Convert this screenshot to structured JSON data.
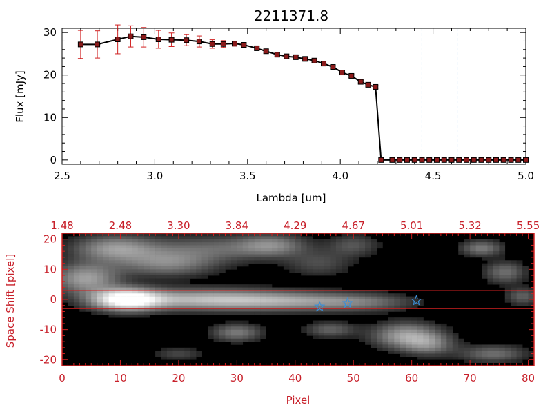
{
  "chart_data": [
    {
      "type": "line",
      "title": "2211371.8",
      "xlabel": "Lambda [um]",
      "ylabel": "Flux [mJy]",
      "xlim": [
        2.5,
        5.0
      ],
      "ylim": [
        -1,
        31
      ],
      "xticks": [
        "2.5",
        "3.0",
        "3.5",
        "4.0",
        "4.5",
        "5.0"
      ],
      "yticks": [
        "0",
        "10",
        "20",
        "30"
      ],
      "vlines": [
        4.44,
        4.63
      ],
      "series": [
        {
          "name": "flux",
          "x": [
            2.6,
            2.69,
            2.8,
            2.87,
            2.94,
            3.02,
            3.09,
            3.17,
            3.24,
            3.31,
            3.37,
            3.43,
            3.48,
            3.55,
            3.6,
            3.66,
            3.71,
            3.76,
            3.81,
            3.86,
            3.91,
            3.96,
            4.01,
            4.06,
            4.11,
            4.15,
            4.19,
            4.22,
            4.28,
            4.32,
            4.36,
            4.4,
            4.44,
            4.48,
            4.52,
            4.56,
            4.6,
            4.64,
            4.68,
            4.72,
            4.76,
            4.8,
            4.84,
            4.88,
            4.92,
            4.96,
            5.0
          ],
          "y": [
            27.2,
            27.2,
            28.4,
            29.1,
            28.9,
            28.4,
            28.3,
            28.2,
            27.9,
            27.3,
            27.3,
            27.4,
            27.1,
            26.3,
            25.6,
            24.8,
            24.4,
            24.2,
            23.8,
            23.4,
            22.7,
            21.9,
            20.6,
            19.8,
            18.4,
            17.7,
            17.2,
            0,
            0,
            0,
            0,
            0,
            0,
            0,
            0,
            0,
            0,
            0,
            0,
            0,
            0,
            0,
            0,
            0,
            0,
            0,
            0
          ],
          "yerr": [
            3.3,
            3.2,
            3.4,
            2.5,
            2.3,
            2.1,
            1.6,
            1.3,
            1.3,
            1.0,
            0.8,
            0.6,
            0.5,
            0.5,
            0.5,
            0.4,
            0.4,
            0.4,
            0.4,
            0.4,
            0.4,
            0.4,
            0.4,
            0.4,
            0.4,
            0.4,
            0.4,
            0.1,
            0.1,
            0.1,
            0.1,
            0.1,
            0.1,
            0.1,
            0.1,
            0.1,
            0.1,
            0.1,
            0.1,
            0.1,
            0.1,
            0.1,
            0.1,
            0.1,
            0.1,
            0.1,
            0.1
          ]
        }
      ]
    },
    {
      "type": "heatmap",
      "xlabel": "Pixel",
      "ylabel": "Space Shift [pixel]",
      "xlim": [
        0,
        81
      ],
      "ylim": [
        -22,
        22
      ],
      "xticks": [
        "0",
        "10",
        "20",
        "30",
        "40",
        "50",
        "60",
        "70",
        "80"
      ],
      "yticks": [
        "-20",
        "-10",
        "0",
        "10",
        "20"
      ],
      "top_axis_ticks": [
        "1.48",
        "2.48",
        "3.30",
        "3.84",
        "4.29",
        "4.67",
        "5.01",
        "5.32",
        "5.55"
      ],
      "extraction_window": [
        -3,
        3
      ],
      "stars": [
        {
          "x": 44.2,
          "y": -2.4
        },
        {
          "x": 49.0,
          "y": -1.2
        },
        {
          "x": 60.8,
          "y": -0.4
        }
      ],
      "blobs": [
        {
          "x": 11,
          "y": 0,
          "sx": 4,
          "sy": 2.5,
          "v": 1.0
        },
        {
          "x": 24,
          "y": 0,
          "sx": 10,
          "sy": 2.4,
          "v": 0.62
        },
        {
          "x": 40,
          "y": -0.6,
          "sx": 9,
          "sy": 2.2,
          "v": 0.42
        },
        {
          "x": 52,
          "y": -1,
          "sx": 6,
          "sy": 2,
          "v": 0.25
        },
        {
          "x": 4,
          "y": 7,
          "sx": 4,
          "sy": 3.5,
          "v": 0.55
        },
        {
          "x": 9,
          "y": 17,
          "sx": 5,
          "sy": 3,
          "v": 0.5
        },
        {
          "x": 18,
          "y": 12,
          "sx": 6,
          "sy": 3,
          "v": 0.42
        },
        {
          "x": 26,
          "y": 17,
          "sx": 8,
          "sy": 3,
          "v": 0.3
        },
        {
          "x": 36,
          "y": 18,
          "sx": 4,
          "sy": 2.5,
          "v": 0.38
        },
        {
          "x": 44,
          "y": 12,
          "sx": 4,
          "sy": 3,
          "v": 0.22
        },
        {
          "x": 50,
          "y": 18,
          "sx": 3,
          "sy": 2.5,
          "v": 0.25
        },
        {
          "x": 72,
          "y": 17,
          "sx": 2.5,
          "sy": 1.8,
          "v": 0.4
        },
        {
          "x": 76,
          "y": 9,
          "sx": 2.5,
          "sy": 2.5,
          "v": 0.35
        },
        {
          "x": 79,
          "y": 1,
          "sx": 2,
          "sy": 2,
          "v": 0.3
        },
        {
          "x": 30,
          "y": -11,
          "sx": 3,
          "sy": 2,
          "v": 0.4
        },
        {
          "x": 46,
          "y": -10,
          "sx": 3,
          "sy": 1.8,
          "v": 0.3
        },
        {
          "x": 59,
          "y": -12,
          "sx": 4,
          "sy": 3,
          "v": 0.55
        },
        {
          "x": 63,
          "y": -15,
          "sx": 3,
          "sy": 2.5,
          "v": 0.35
        },
        {
          "x": 74,
          "y": -18,
          "sx": 4,
          "sy": 2,
          "v": 0.35
        },
        {
          "x": 20,
          "y": -18,
          "sx": 3,
          "sy": 1.5,
          "v": 0.2
        }
      ]
    }
  ]
}
